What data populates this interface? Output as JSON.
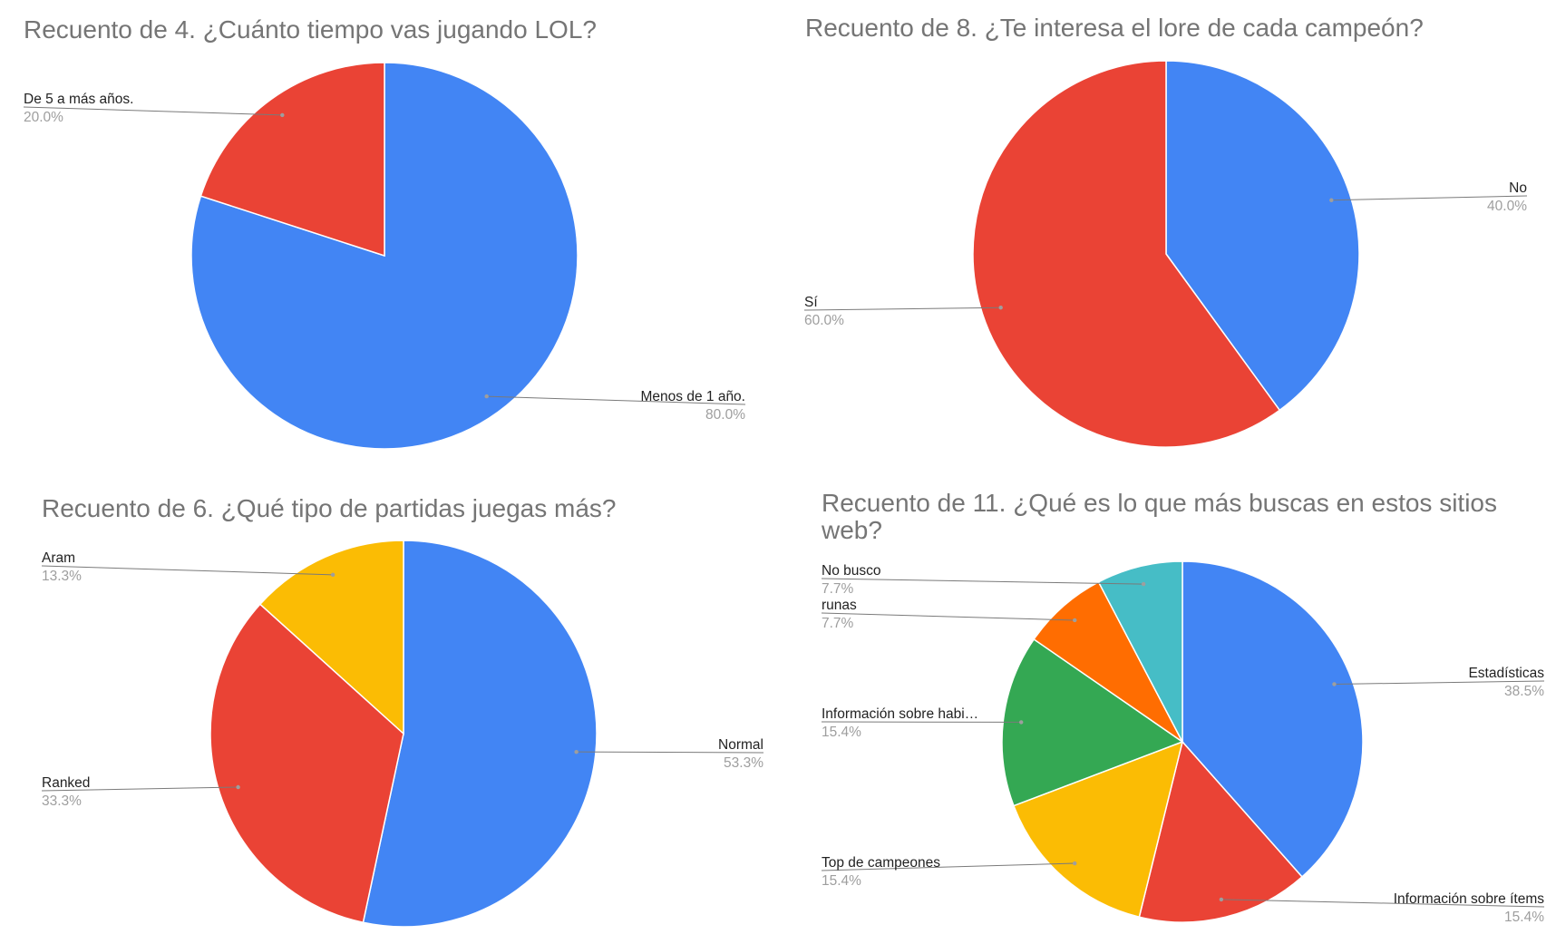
{
  "chart_data": [
    {
      "type": "pie",
      "title": "Recuento de 4. ¿Cuánto tiempo vas jugando LOL?",
      "slices": [
        {
          "label": "Menos de 1 año.",
          "value": 80.0,
          "percent_label": "80.0%",
          "color": "#4285F4"
        },
        {
          "label": "De 5 a más años.",
          "value": 20.0,
          "percent_label": "20.0%",
          "color": "#EA4335"
        }
      ]
    },
    {
      "type": "pie",
      "title": "Recuento de 8. ¿Te interesa el lore de cada campeón?",
      "slices": [
        {
          "label": "No",
          "value": 40.0,
          "percent_label": "40.0%",
          "color": "#4285F4"
        },
        {
          "label": "Sí",
          "value": 60.0,
          "percent_label": "60.0%",
          "color": "#EA4335"
        }
      ]
    },
    {
      "type": "pie",
      "title": "Recuento de 6. ¿Qué tipo de partidas juegas más?",
      "slices": [
        {
          "label": "Normal",
          "value": 53.3,
          "percent_label": "53.3%",
          "color": "#4285F4"
        },
        {
          "label": "Ranked",
          "value": 33.3,
          "percent_label": "33.3%",
          "color": "#EA4335"
        },
        {
          "label": "Aram",
          "value": 13.3,
          "percent_label": "13.3%",
          "color": "#FBBC04"
        }
      ]
    },
    {
      "type": "pie",
      "title": "Recuento de 11. ¿Qué es lo que más buscas en estos sitios web?",
      "slices": [
        {
          "label": "Estadísticas",
          "value": 38.5,
          "percent_label": "38.5%",
          "color": "#4285F4"
        },
        {
          "label": "Información sobre ítems",
          "value": 15.4,
          "percent_label": "15.4%",
          "color": "#EA4335"
        },
        {
          "label": "Top de campeones",
          "value": 15.4,
          "percent_label": "15.4%",
          "color": "#FBBC04"
        },
        {
          "label": "Información sobre habi…",
          "value": 15.4,
          "percent_label": "15.4%",
          "color": "#34A853"
        },
        {
          "label": "runas",
          "value": 7.7,
          "percent_label": "7.7%",
          "color": "#FF6D01"
        },
        {
          "label": "No busco",
          "value": 7.7,
          "percent_label": "7.7%",
          "color": "#46BDC6"
        }
      ]
    }
  ]
}
